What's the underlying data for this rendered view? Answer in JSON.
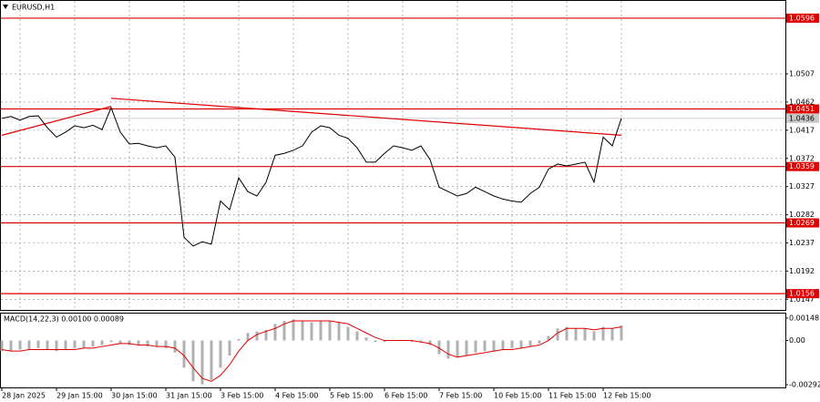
{
  "chart_data": [
    {
      "type": "line",
      "title": "EURUSD,H1",
      "categories": [
        "28 Jan 2025",
        null,
        null,
        null,
        null,
        null,
        "29 Jan 15:00",
        null,
        null,
        null,
        null,
        null,
        "30 Jan 15:00",
        null,
        null,
        null,
        null,
        null,
        "31 Jan 15:00",
        null,
        null,
        null,
        null,
        null,
        "3 Feb 15:00",
        null,
        null,
        null,
        null,
        null,
        "4 Feb 15:00",
        null,
        null,
        null,
        null,
        null,
        "5 Feb 15:00",
        null,
        null,
        null,
        null,
        null,
        "6 Feb 15:00",
        null,
        null,
        null,
        null,
        null,
        "7 Feb 15:00",
        null,
        null,
        null,
        null,
        null,
        "10 Feb 15:00",
        null,
        null,
        null,
        null,
        null,
        "11 Feb 15:00",
        null,
        null,
        null,
        null,
        null,
        "12 Feb 15:00",
        null,
        null
      ],
      "series": [
        {
          "color": "#000000",
          "values": [
            1.0436,
            1.0439,
            1.0433,
            1.0439,
            1.044,
            1.0421,
            1.0406,
            1.0414,
            1.0424,
            1.0421,
            1.0425,
            1.0418,
            1.0453,
            1.0414,
            1.0395,
            1.0396,
            1.0392,
            1.0389,
            1.0392,
            1.0374,
            1.0246,
            1.0232,
            1.0239,
            1.0235,
            1.0304,
            1.029,
            1.0341,
            1.0319,
            1.0312,
            1.0334,
            1.0377,
            1.038,
            1.0385,
            1.0392,
            1.0414,
            1.0424,
            1.0421,
            1.0409,
            1.0404,
            1.0389,
            1.0366,
            1.0366,
            1.038,
            1.0392,
            1.0389,
            1.0385,
            1.0392,
            1.037,
            1.0326,
            1.0319,
            1.0312,
            1.0316,
            1.0326,
            1.0319,
            1.0312,
            1.0307,
            1.0304,
            1.0302,
            1.0316,
            1.0326,
            1.0355,
            1.0363,
            1.036,
            1.0363,
            1.0366,
            1.0334,
            1.0406,
            1.0392,
            1.0436
          ]
        }
      ],
      "ylim": [
        1.013,
        1.0625
      ],
      "yticks": [
        1.0507,
        1.0462,
        1.0417,
        1.0372,
        1.0327,
        1.0282,
        1.0237,
        1.0192,
        1.0147
      ],
      "levels": [
        1.0596,
        1.0451,
        1.0359,
        1.0269,
        1.0156
      ],
      "level_color": "#e00000",
      "last_price": 1.0436,
      "trendlines": [
        {
          "from": [
            0,
            1.0409
          ],
          "to": [
            12,
            1.0455
          ]
        },
        {
          "from": [
            12,
            1.0468
          ],
          "to": [
            68,
            1.0409
          ]
        }
      ],
      "grid": true
    },
    {
      "type": "macd",
      "title": "MACD(14,22,3) 0.00100 0.00089",
      "ylim": [
        -0.0031,
        0.00184
      ],
      "yticks": [
        0.00148,
        {
          "value": 0,
          "label": "0.00"
        },
        -0.00292
      ],
      "series": [
        {
          "color": "#b0b0b0",
          "values": [
            -0.0007,
            -0.0007,
            -0.0006,
            -0.0006,
            -0.0005,
            -0.0006,
            -0.0007,
            -0.0006,
            -0.0005,
            -0.0005,
            -0.0004,
            -0.0003,
            -0.0001,
            -0.0002,
            -0.0003,
            -0.0003,
            -0.0004,
            -0.0004,
            -0.0005,
            -0.0008,
            -0.0018,
            -0.0027,
            -0.0029,
            -0.0026,
            -0.0018,
            -0.001,
            0.0001,
            0.0005,
            0.0006,
            0.0007,
            0.0011,
            0.0013,
            0.0014,
            0.0013,
            0.0012,
            0.0013,
            0.0013,
            0.0012,
            0.0009,
            0.0006,
            0.0002,
            -0.0001,
            -0.0001,
            0,
            0,
            -0.0001,
            -0.0001,
            -0.0003,
            -0.0009,
            -0.0012,
            -0.0011,
            -0.001,
            -0.0008,
            -0.0007,
            -0.0007,
            -0.0006,
            -0.0005,
            -0.0005,
            -0.0004,
            -0.0002,
            0.0003,
            0.0008,
            0.0009,
            0.0008,
            0.0008,
            0.0006,
            0.0009,
            0.0008,
            0.001
          ]
        },
        {
          "color": "#e00000",
          "values": [
            -0.0006,
            -0.0007,
            -0.0007,
            -0.0006,
            -0.0006,
            -0.0006,
            -0.0006,
            -0.0006,
            -0.0006,
            -0.0005,
            -0.0005,
            -0.0004,
            -0.0003,
            -0.0002,
            -0.0002,
            -0.0003,
            -0.0003,
            -0.0004,
            -0.0004,
            -0.0005,
            -0.001,
            -0.0018,
            -0.0025,
            -0.0027,
            -0.0023,
            -0.0016,
            -0.0007,
            0,
            0.0004,
            0.0006,
            0.0008,
            0.0011,
            0.0013,
            0.0013,
            0.0013,
            0.0013,
            0.0013,
            0.0012,
            0.0011,
            0.0008,
            0.0005,
            0.0002,
            0,
            0,
            0,
            0,
            -0.0001,
            -0.0002,
            -0.0005,
            -0.0009,
            -0.0011,
            -0.001,
            -0.0009,
            -0.0008,
            -0.0007,
            -0.0006,
            -0.0006,
            -0.0005,
            -0.0004,
            -0.0003,
            0,
            0.0005,
            0.0008,
            0.0008,
            0.0008,
            0.0007,
            0.0008,
            0.0008,
            0.0009
          ]
        }
      ]
    }
  ]
}
